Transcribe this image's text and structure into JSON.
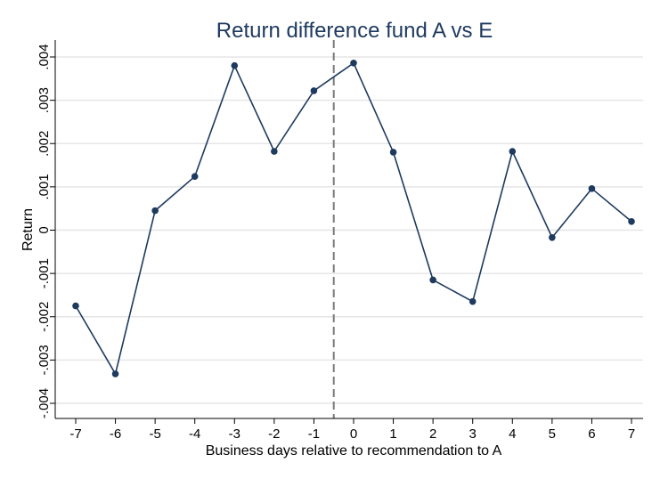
{
  "chart_data": {
    "type": "line",
    "title": "Return difference fund A vs E",
    "xlabel": "Business days relative to recommendation to A",
    "ylabel": "Return",
    "x": [
      -7,
      -6,
      -5,
      -4,
      -3,
      -2,
      -1,
      0,
      1,
      2,
      3,
      4,
      5,
      6,
      7
    ],
    "series": [
      {
        "values": [
          -0.00175,
          -0.00332,
          0.00045,
          0.00124,
          0.0038,
          0.00182,
          0.00322,
          0.00386,
          0.0018,
          -0.00115,
          -0.00165,
          0.00182,
          -0.00017,
          0.00096,
          0.0002
        ]
      }
    ],
    "xlim": [
      -7,
      7
    ],
    "ylim": [
      -0.004,
      0.004
    ],
    "x_ticks": [
      "-7",
      "-6",
      "-5",
      "-4",
      "-3",
      "-2",
      "-1",
      "0",
      "1",
      "2",
      "3",
      "4",
      "5",
      "6",
      "7"
    ],
    "y_ticks": [
      "-.004",
      "-.003",
      "-.002",
      "-.001",
      "0",
      ".001",
      ".002",
      ".003",
      ".004"
    ],
    "reference_line": {
      "x": -0.5,
      "style": "dashed"
    },
    "grid": true,
    "colors": {
      "line": "#1e3a5f",
      "grid": "#e6e6e6",
      "reference": "#7a7a7a",
      "title": "#1e3a5f"
    }
  }
}
